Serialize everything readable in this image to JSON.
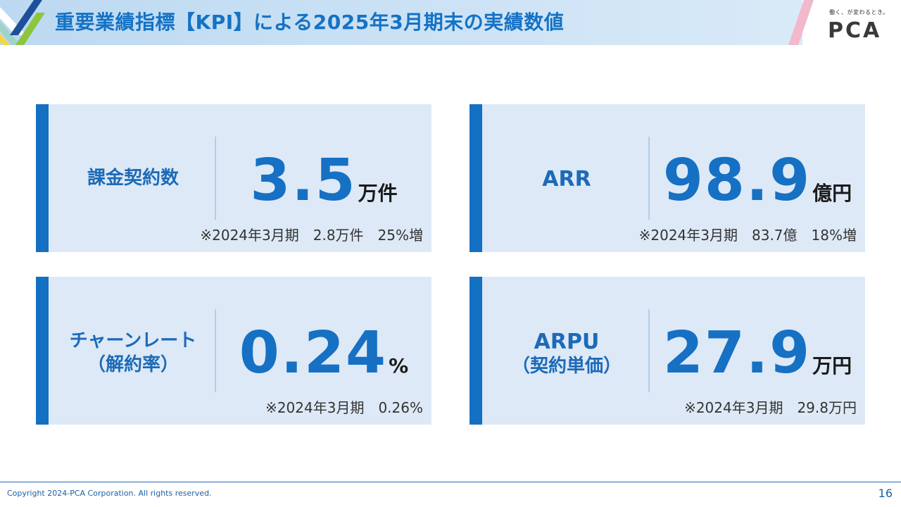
{
  "header": {
    "title": "重要業績指標【KPI】による2025年3月期末の実績数値",
    "logo_tagline": "働く、が変わるとき。",
    "logo_text": "PCA"
  },
  "kpis": [
    {
      "label_line1": "課金契約数",
      "label_line2": "",
      "value": "3.5",
      "unit": "万件",
      "note": "※2024年3月期　2.8万件　25%増"
    },
    {
      "label_line1": "ARR",
      "label_line2": "",
      "value": "98.9",
      "unit": "億円",
      "note": "※2024年3月期　83.7億　18%増"
    },
    {
      "label_line1": "チャーンレート",
      "label_line2": "（解約率）",
      "value": "0.24",
      "unit": "%",
      "note": "※2024年3月期　0.26%"
    },
    {
      "label_line1": "ARPU",
      "label_line2": "（契約単価）",
      "value": "27.9",
      "unit": "万円",
      "note": "※2024年3月期　29.8万円"
    }
  ],
  "footer": {
    "copyright": "Copyright 2024-PCA Corporation. All rights reserved.",
    "page_number": "16"
  },
  "colors": {
    "accent": "#1470c2",
    "card_bg": "#dde9f6",
    "header_bg": "#cfe3f5"
  }
}
